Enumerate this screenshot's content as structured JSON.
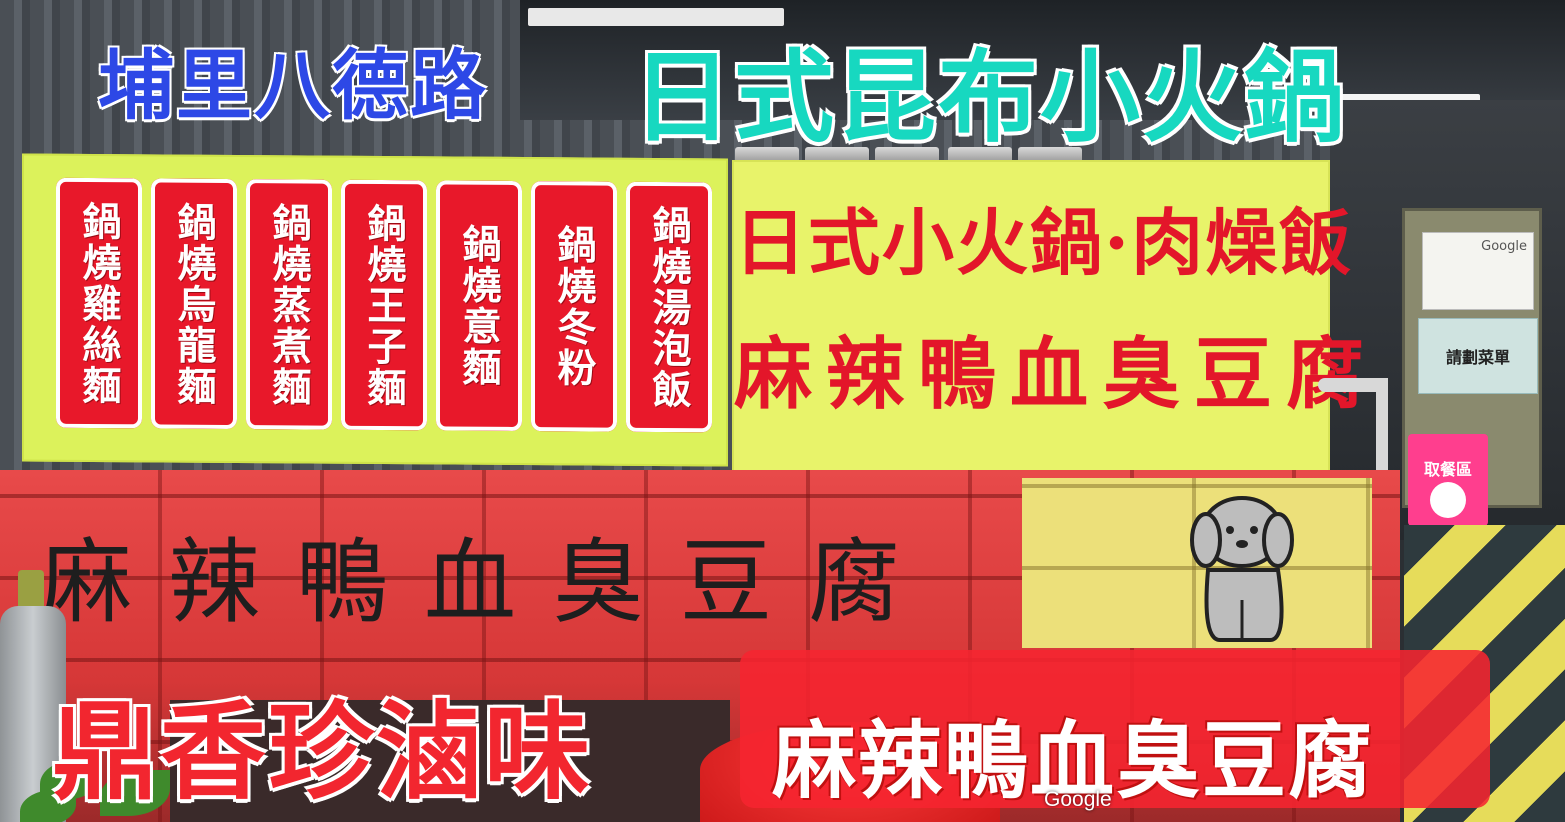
{
  "overlay": {
    "top_left": "埔里八德路",
    "top_center": "日式昆布小火鍋",
    "bottom_left": "鼎香珍滷味",
    "bottom_right": "麻辣鴨血臭豆腐"
  },
  "left_sign": {
    "banners": [
      "鍋燒雞絲麵",
      "鍋燒烏龍麵",
      "鍋燒蒸煮麵",
      "鍋燒王子麵",
      "鍋燒意麵",
      "鍋燒冬粉",
      "鍋燒湯泡飯"
    ],
    "banner_color": "#e8182a",
    "background_color": "#dcf25b"
  },
  "right_sign": {
    "line1": "日式小火鍋·肉燥飯",
    "line2": "麻辣鴨血臭豆腐",
    "text_color": "#e3162a"
  },
  "wall": {
    "painted_text": "麻辣鴨血臭豆腐",
    "dog": "dog-drawing"
  },
  "side_stand": {
    "google_card": "Google",
    "menu_card": "請劃菜單",
    "foodpanda_card": "取餐區"
  },
  "watermark": "Google"
}
